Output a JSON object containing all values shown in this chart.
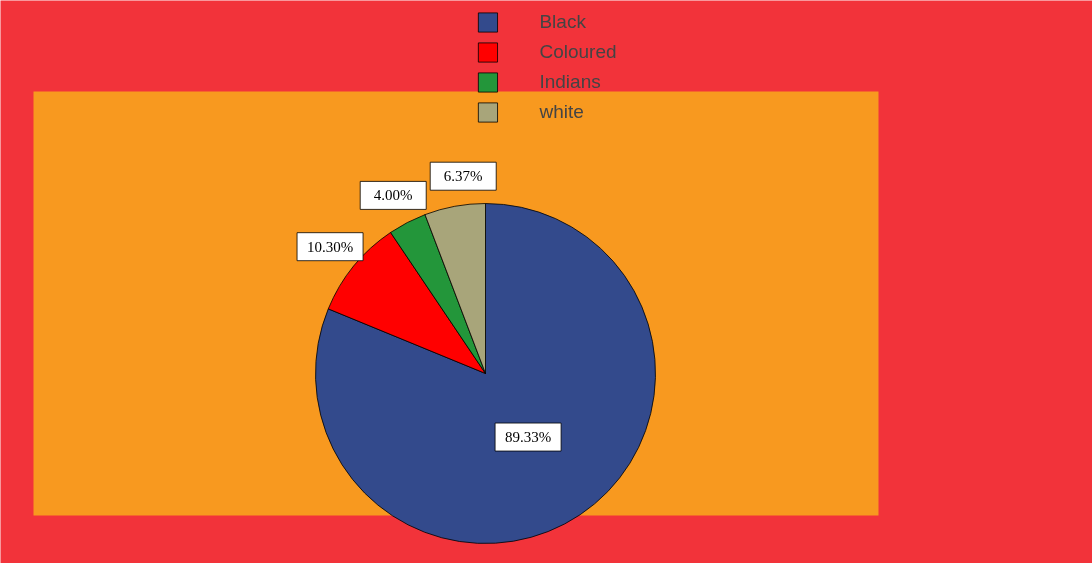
{
  "chart_data": {
    "type": "pie",
    "categories": [
      "Black",
      "Coloured",
      "Indians",
      "white"
    ],
    "values": [
      89.33,
      10.3,
      4.0,
      6.37
    ],
    "value_labels": [
      "89.33%",
      "10.30%",
      "4.00%",
      "6.37%"
    ],
    "colors": [
      "#334a8c",
      "#ff0000",
      "#23963a",
      "#a8a57a"
    ],
    "legend": "top"
  }
}
